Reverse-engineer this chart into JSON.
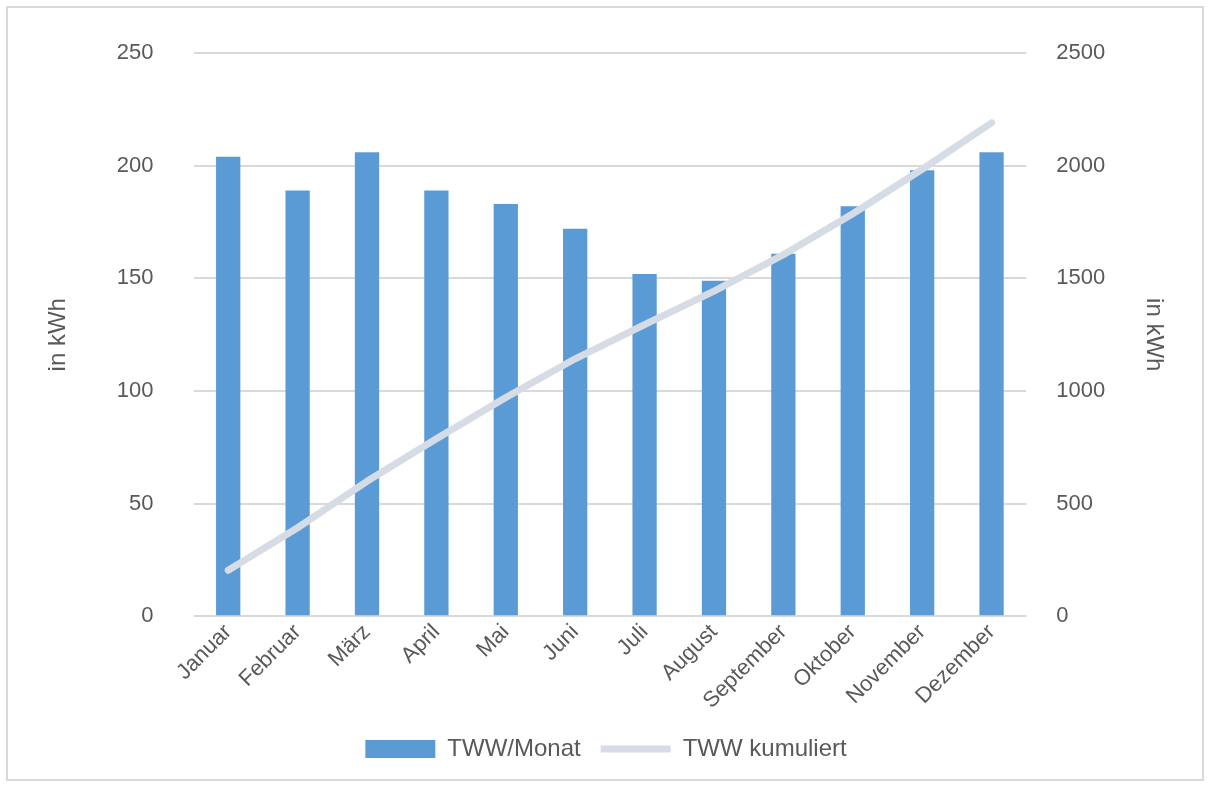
{
  "chart_data": {
    "type": "bar",
    "ylabel": "in kWh",
    "y2label": "in kWh",
    "categories": [
      "Januar",
      "Februar",
      "März",
      "April",
      "Mai",
      "Juni",
      "Juli",
      "August",
      "September",
      "Oktober",
      "November",
      "Dezember"
    ],
    "series": [
      {
        "name": "TWW/Monat",
        "color": "#5b9bd5",
        "values": [
          204,
          189,
          206,
          189,
          183,
          172,
          152,
          149,
          161,
          182,
          198,
          206
        ]
      },
      {
        "name": "TWW kumuliert",
        "type": "line",
        "axis": "y2",
        "color": "#d6dce5",
        "values": [
          204,
          393,
          599,
          788,
          971,
          1143,
          1295,
          1444,
          1605,
          1787,
          1985,
          2191
        ]
      }
    ],
    "ylim": [
      0,
      250
    ],
    "yticks": [
      0,
      50,
      100,
      150,
      200,
      250
    ],
    "y2lim": [
      0,
      2500
    ],
    "y2ticks": [
      0,
      500,
      1000,
      1500,
      2000,
      2500
    ],
    "grid": "y",
    "legend": "bottom",
    "marker": "none"
  }
}
